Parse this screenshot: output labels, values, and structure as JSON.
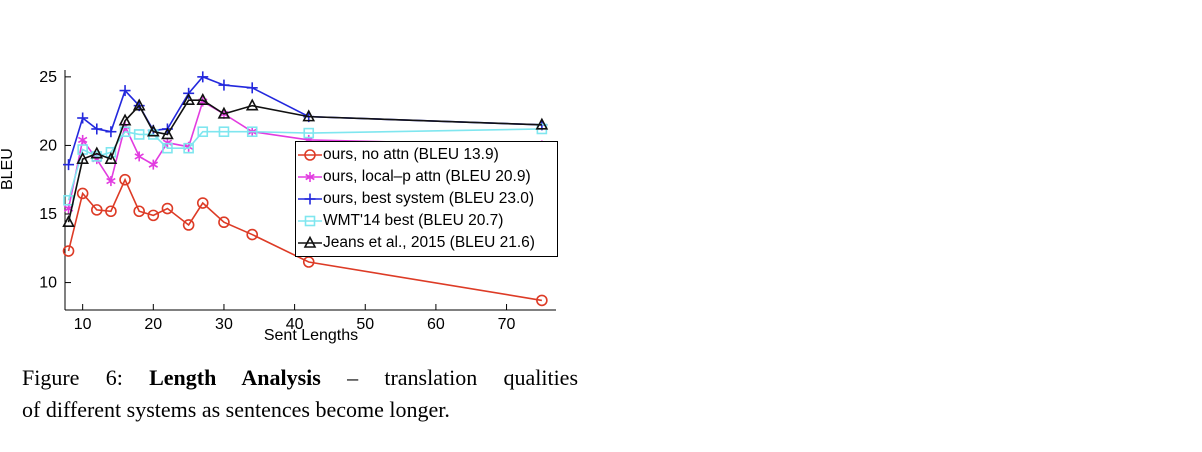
{
  "page": {
    "background": "#ffffff"
  },
  "caption": {
    "prefix": "Figure 6:",
    "bold": "Length Analysis",
    "rest": "– translation qualities",
    "line2": "of different systems as sentences become longer."
  },
  "chart_data": {
    "type": "line",
    "title": "",
    "xlabel": "Sent Lengths",
    "ylabel": "BLEU",
    "xlim": [
      7.5,
      77
    ],
    "ylim": [
      8,
      25.5
    ],
    "x_ticks": [
      10,
      20,
      30,
      40,
      50,
      60,
      70
    ],
    "y_ticks": [
      10,
      15,
      20,
      25
    ],
    "grid": false,
    "legend_position": "inside-right",
    "x": [
      8,
      10,
      12,
      14,
      16,
      18,
      20,
      22,
      25,
      27,
      30,
      34,
      42,
      75
    ],
    "series": [
      {
        "name": "ours, no attn",
        "legend_label": "ours, no attn (BLEU 13.9)",
        "marker": "circle",
        "color": "#dd3b26",
        "values": [
          12.3,
          16.5,
          15.3,
          15.2,
          17.5,
          15.2,
          14.9,
          15.4,
          14.2,
          15.8,
          14.4,
          13.5,
          11.5,
          8.7
        ]
      },
      {
        "name": "ours, local-p attn",
        "legend_label": "ours, local–p attn (BLEU 20.9)",
        "marker": "asterisk",
        "color": "#e23ce0",
        "values": [
          15.4,
          20.4,
          19.0,
          17.4,
          21.4,
          19.2,
          18.6,
          20.2,
          19.9,
          23.2,
          22.3,
          21.0,
          20.4,
          20.0
        ]
      },
      {
        "name": "ours, best system",
        "legend_label": "ours, best system (BLEU 23.0)",
        "marker": "plus",
        "color": "#2328dd",
        "values": [
          18.6,
          22.0,
          21.2,
          21.0,
          24.0,
          22.9,
          21.1,
          21.2,
          23.8,
          25.0,
          24.4,
          24.2,
          22.1,
          21.5
        ]
      },
      {
        "name": "WMT'14 best",
        "legend_label": "WMT'14 best (BLEU 20.7)",
        "marker": "square",
        "color": "#7fe6ef",
        "values": [
          16.0,
          19.7,
          19.2,
          19.5,
          21.0,
          20.8,
          20.8,
          19.8,
          19.8,
          21.0,
          21.0,
          21.0,
          20.9,
          21.2
        ]
      },
      {
        "name": "Jeans et al., 2015",
        "legend_label": "Jeans et al., 2015 (BLEU 21.6)",
        "marker": "triangle",
        "color": "#111111",
        "values": [
          14.4,
          19.0,
          19.4,
          19.0,
          21.8,
          22.9,
          21.0,
          20.8,
          23.3,
          23.3,
          22.3,
          22.9,
          22.1,
          21.5
        ]
      }
    ]
  }
}
